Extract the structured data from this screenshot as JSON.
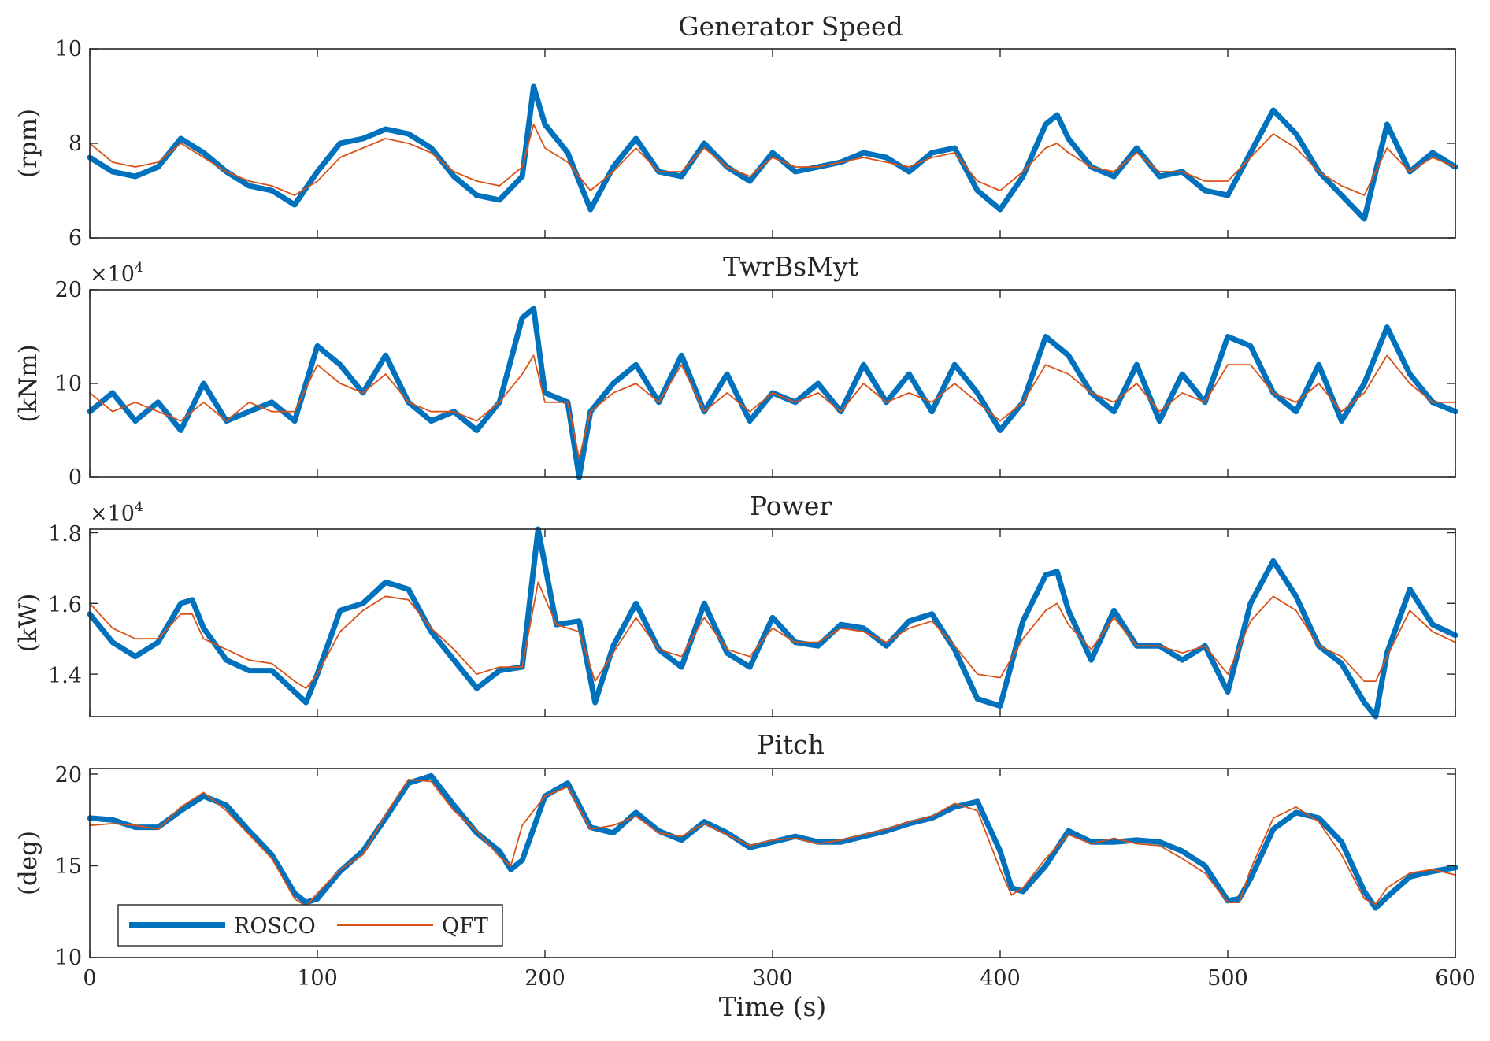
{
  "figure": {
    "xlabel": "Time (s)",
    "x_tick_labels": [
      "0",
      "100",
      "200",
      "300",
      "400",
      "500",
      "600"
    ],
    "legend": [
      "ROSCO",
      "QFT"
    ],
    "colors": {
      "ROSCO": "#0072BD",
      "QFT": "#D95319",
      "axis": "#262626"
    }
  },
  "chart_data": [
    {
      "type": "line",
      "title": "Generator Speed",
      "ylabel": "(rpm)",
      "y_tick_labels": [
        "6",
        "8",
        "10"
      ],
      "xlim": [
        0,
        600
      ],
      "ylim": [
        6,
        10
      ],
      "yticks": [
        6,
        8,
        10
      ],
      "x": [
        0,
        10,
        20,
        30,
        40,
        50,
        60,
        70,
        80,
        90,
        100,
        110,
        120,
        130,
        140,
        150,
        160,
        170,
        180,
        190,
        195,
        200,
        210,
        220,
        230,
        240,
        250,
        260,
        270,
        280,
        290,
        300,
        310,
        320,
        330,
        340,
        350,
        360,
        370,
        380,
        390,
        400,
        410,
        420,
        425,
        430,
        440,
        450,
        460,
        470,
        480,
        490,
        500,
        510,
        520,
        530,
        540,
        550,
        560,
        570,
        580,
        590,
        600
      ],
      "series": [
        {
          "name": "ROSCO",
          "values": [
            7.7,
            7.4,
            7.3,
            7.5,
            8.1,
            7.8,
            7.4,
            7.1,
            7.0,
            6.7,
            7.4,
            8.0,
            8.1,
            8.3,
            8.2,
            7.9,
            7.3,
            6.9,
            6.8,
            7.3,
            9.2,
            8.4,
            7.8,
            6.6,
            7.5,
            8.1,
            7.4,
            7.3,
            8.0,
            7.5,
            7.2,
            7.8,
            7.4,
            7.5,
            7.6,
            7.8,
            7.7,
            7.4,
            7.8,
            7.9,
            7.0,
            6.6,
            7.3,
            8.4,
            8.6,
            8.1,
            7.5,
            7.3,
            7.9,
            7.3,
            7.4,
            7.0,
            6.9,
            7.8,
            8.7,
            8.2,
            7.4,
            6.9,
            6.4,
            8.4,
            7.4,
            7.8,
            7.5
          ]
        },
        {
          "name": "QFT",
          "values": [
            8.0,
            7.6,
            7.5,
            7.6,
            8.0,
            7.7,
            7.4,
            7.2,
            7.1,
            6.9,
            7.2,
            7.7,
            7.9,
            8.1,
            8.0,
            7.8,
            7.4,
            7.2,
            7.1,
            7.5,
            8.4,
            7.9,
            7.6,
            7.0,
            7.4,
            7.9,
            7.4,
            7.4,
            7.9,
            7.5,
            7.3,
            7.7,
            7.5,
            7.5,
            7.6,
            7.7,
            7.6,
            7.5,
            7.7,
            7.8,
            7.2,
            7.0,
            7.4,
            7.9,
            8.0,
            7.8,
            7.5,
            7.4,
            7.8,
            7.4,
            7.4,
            7.2,
            7.2,
            7.7,
            8.2,
            7.9,
            7.4,
            7.1,
            6.9,
            7.9,
            7.4,
            7.7,
            7.5
          ]
        }
      ]
    },
    {
      "type": "line",
      "title": "TwrBsMyt",
      "ylabel": "(kNm)",
      "y_tick_labels": [
        "0",
        "10",
        "20"
      ],
      "y_exponent": "×10",
      "y_exponent_power": "4",
      "xlim": [
        0,
        600
      ],
      "ylim": [
        0,
        20
      ],
      "yticks": [
        0,
        10,
        20
      ],
      "x": [
        0,
        10,
        20,
        30,
        40,
        50,
        60,
        70,
        80,
        90,
        100,
        110,
        120,
        130,
        140,
        150,
        160,
        170,
        180,
        190,
        195,
        200,
        210,
        215,
        220,
        230,
        240,
        250,
        260,
        270,
        280,
        290,
        300,
        310,
        320,
        330,
        340,
        350,
        360,
        370,
        380,
        390,
        400,
        410,
        420,
        430,
        440,
        450,
        460,
        470,
        480,
        490,
        500,
        510,
        520,
        530,
        540,
        550,
        560,
        570,
        580,
        590,
        600
      ],
      "series": [
        {
          "name": "ROSCO",
          "values": [
            7,
            9,
            6,
            8,
            5,
            10,
            6,
            7,
            8,
            6,
            14,
            12,
            9,
            13,
            8,
            6,
            7,
            5,
            8,
            17,
            18,
            9,
            8,
            0,
            7,
            10,
            12,
            8,
            13,
            7,
            11,
            6,
            9,
            8,
            10,
            7,
            12,
            8,
            11,
            7,
            12,
            9,
            5,
            8,
            15,
            13,
            9,
            7,
            12,
            6,
            11,
            8,
            15,
            14,
            9,
            7,
            12,
            6,
            10,
            16,
            11,
            8,
            7
          ]
        },
        {
          "name": "QFT",
          "values": [
            9,
            7,
            8,
            7,
            6,
            8,
            6,
            8,
            7,
            7,
            12,
            10,
            9,
            11,
            8,
            7,
            7,
            6,
            8,
            11,
            13,
            8,
            8,
            2,
            7,
            9,
            10,
            8,
            12,
            7,
            9,
            7,
            9,
            8,
            9,
            7,
            10,
            8,
            9,
            8,
            10,
            8,
            6,
            8,
            12,
            11,
            9,
            8,
            10,
            7,
            9,
            8,
            12,
            12,
            9,
            8,
            10,
            7,
            9,
            13,
            10,
            8,
            8
          ]
        }
      ]
    },
    {
      "type": "line",
      "title": "Power",
      "ylabel": "(kW)",
      "y_tick_labels": [
        "1.4",
        "1.6",
        "1.8"
      ],
      "y_exponent": "×10",
      "y_exponent_power": "4",
      "xlim": [
        0,
        600
      ],
      "ylim": [
        1.28,
        1.81
      ],
      "yticks": [
        1.4,
        1.6,
        1.8
      ],
      "x": [
        0,
        10,
        20,
        30,
        40,
        45,
        50,
        60,
        70,
        80,
        90,
        95,
        100,
        110,
        120,
        130,
        140,
        150,
        160,
        170,
        180,
        190,
        197,
        205,
        215,
        222,
        230,
        240,
        250,
        260,
        270,
        280,
        290,
        300,
        310,
        320,
        330,
        340,
        350,
        360,
        370,
        380,
        390,
        400,
        410,
        420,
        425,
        430,
        440,
        450,
        460,
        470,
        480,
        490,
        500,
        510,
        520,
        530,
        540,
        550,
        560,
        565,
        570,
        580,
        590,
        600
      ],
      "series": [
        {
          "name": "ROSCO",
          "values": [
            1.57,
            1.49,
            1.45,
            1.49,
            1.6,
            1.61,
            1.53,
            1.44,
            1.41,
            1.41,
            1.35,
            1.32,
            1.4,
            1.58,
            1.6,
            1.66,
            1.64,
            1.52,
            1.44,
            1.36,
            1.41,
            1.42,
            1.81,
            1.54,
            1.55,
            1.32,
            1.48,
            1.6,
            1.47,
            1.42,
            1.6,
            1.46,
            1.42,
            1.56,
            1.49,
            1.48,
            1.54,
            1.53,
            1.48,
            1.55,
            1.57,
            1.47,
            1.33,
            1.31,
            1.55,
            1.68,
            1.69,
            1.58,
            1.44,
            1.58,
            1.48,
            1.48,
            1.44,
            1.48,
            1.35,
            1.6,
            1.72,
            1.62,
            1.48,
            1.43,
            1.32,
            1.28,
            1.46,
            1.64,
            1.54,
            1.51
          ]
        },
        {
          "name": "QFT",
          "values": [
            1.6,
            1.53,
            1.5,
            1.5,
            1.57,
            1.57,
            1.5,
            1.47,
            1.44,
            1.43,
            1.38,
            1.36,
            1.4,
            1.52,
            1.58,
            1.62,
            1.61,
            1.53,
            1.47,
            1.4,
            1.42,
            1.42,
            1.66,
            1.54,
            1.52,
            1.38,
            1.46,
            1.56,
            1.47,
            1.45,
            1.56,
            1.47,
            1.45,
            1.53,
            1.49,
            1.49,
            1.53,
            1.52,
            1.49,
            1.53,
            1.55,
            1.48,
            1.4,
            1.39,
            1.5,
            1.58,
            1.6,
            1.54,
            1.47,
            1.56,
            1.48,
            1.48,
            1.46,
            1.48,
            1.4,
            1.55,
            1.62,
            1.58,
            1.48,
            1.45,
            1.38,
            1.38,
            1.45,
            1.58,
            1.52,
            1.49
          ]
        }
      ]
    },
    {
      "type": "line",
      "title": "Pitch",
      "ylabel": "(deg)",
      "y_tick_labels": [
        "10",
        "15",
        "20"
      ],
      "xlim": [
        0,
        600
      ],
      "ylim": [
        10,
        20.3
      ],
      "yticks": [
        10,
        15,
        20
      ],
      "x": [
        0,
        10,
        20,
        30,
        40,
        50,
        60,
        70,
        80,
        90,
        95,
        100,
        110,
        120,
        130,
        140,
        150,
        160,
        170,
        180,
        185,
        190,
        200,
        210,
        220,
        230,
        240,
        250,
        260,
        270,
        280,
        290,
        300,
        310,
        320,
        330,
        340,
        350,
        360,
        370,
        380,
        390,
        400,
        405,
        410,
        420,
        430,
        440,
        450,
        460,
        470,
        480,
        490,
        500,
        505,
        510,
        520,
        530,
        540,
        550,
        560,
        565,
        570,
        580,
        590,
        600
      ],
      "series": [
        {
          "name": "ROSCO",
          "values": [
            17.6,
            17.5,
            17.1,
            17.1,
            18.0,
            18.8,
            18.3,
            16.9,
            15.6,
            13.5,
            13.0,
            13.2,
            14.7,
            15.8,
            17.6,
            19.5,
            19.9,
            18.3,
            16.8,
            15.8,
            14.8,
            15.3,
            18.8,
            19.5,
            17.1,
            16.8,
            17.9,
            16.9,
            16.4,
            17.4,
            16.8,
            16.0,
            16.3,
            16.6,
            16.3,
            16.3,
            16.6,
            16.9,
            17.3,
            17.6,
            18.2,
            18.5,
            15.8,
            13.8,
            13.6,
            15.0,
            16.9,
            16.3,
            16.3,
            16.4,
            16.3,
            15.8,
            15.0,
            13.1,
            13.2,
            14.3,
            17.0,
            17.9,
            17.6,
            16.3,
            13.6,
            12.7,
            13.3,
            14.4,
            14.7,
            14.9
          ]
        },
        {
          "name": "QFT",
          "values": [
            17.2,
            17.3,
            17.2,
            17.0,
            18.2,
            19.0,
            18.0,
            16.7,
            15.4,
            13.2,
            12.8,
            13.5,
            14.8,
            15.6,
            17.8,
            19.7,
            19.6,
            18.0,
            16.9,
            15.5,
            15.0,
            17.2,
            18.8,
            19.3,
            17.0,
            17.2,
            17.7,
            16.8,
            16.6,
            17.3,
            16.7,
            16.1,
            16.4,
            16.5,
            16.2,
            16.4,
            16.7,
            17.0,
            17.4,
            17.7,
            18.4,
            18.0,
            14.8,
            13.4,
            13.8,
            15.4,
            16.7,
            16.2,
            16.5,
            16.2,
            16.1,
            15.4,
            14.6,
            13.0,
            13.0,
            14.8,
            17.6,
            18.2,
            17.4,
            15.6,
            13.2,
            12.9,
            13.8,
            14.6,
            14.8,
            14.5
          ]
        }
      ]
    }
  ]
}
